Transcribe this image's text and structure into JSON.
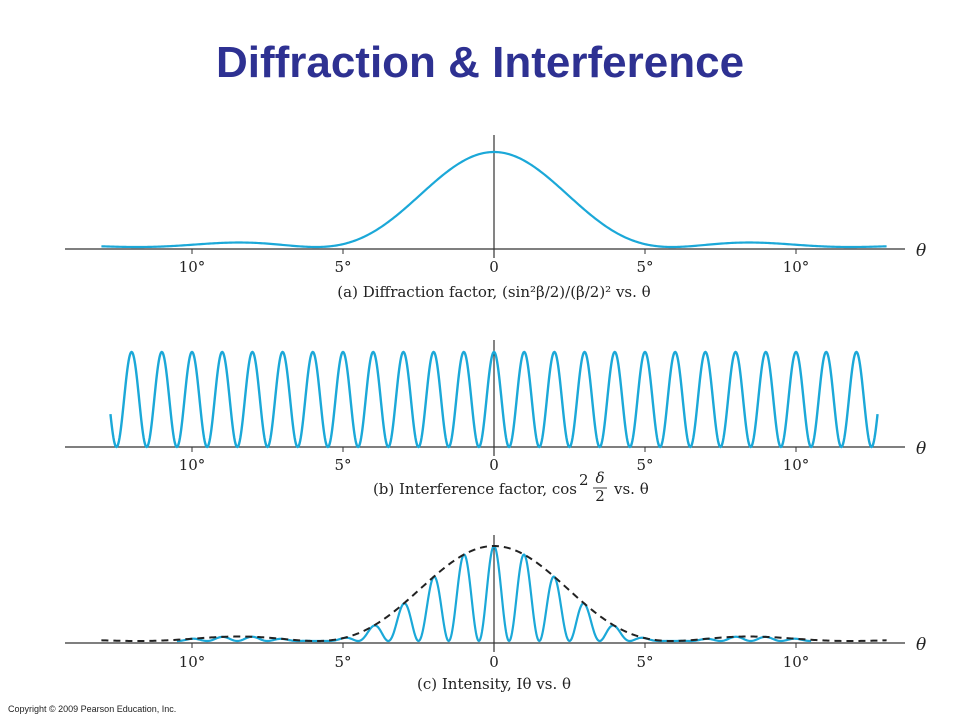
{
  "slide": {
    "title": "Diffraction & Interference",
    "copyright": "Copyright © 2009 Pearson Education, Inc."
  },
  "colors": {
    "curve": "#1ba8d8",
    "envelope": "#222222",
    "axis": "#333333",
    "title": "#2e3192"
  },
  "chart_data": [
    {
      "type": "line",
      "panel": "a",
      "x_symbol": "θ",
      "caption": "(a) Diffraction factor, (sin²β/2)/(β/2)² vs. θ",
      "x_tick_labels": [
        "10°",
        "5°",
        "0",
        "5°",
        "10°"
      ],
      "x_tick_values": [
        -10,
        -5,
        0,
        5,
        10
      ],
      "xlim": [
        -13,
        13
      ],
      "ylim": [
        0,
        1
      ],
      "first_minimum_deg": 5.9,
      "series": [
        {
          "points": [
            [
              -13,
              0.014
            ],
            [
              -12,
              0.0004
            ],
            [
              -11,
              0.022
            ],
            [
              -10,
              0.044
            ],
            [
              -8.9,
              0.049
            ],
            [
              -8,
              0.038
            ],
            [
              -7,
              0.013
            ],
            [
              -5.9,
              0
            ],
            [
              -5,
              0.042
            ],
            [
              -4,
              0.24
            ],
            [
              -3,
              0.53
            ],
            [
              -2,
              0.77
            ],
            [
              -1,
              0.94
            ],
            [
              0,
              1
            ],
            [
              1,
              0.94
            ],
            [
              2,
              0.77
            ],
            [
              3,
              0.53
            ],
            [
              4,
              0.24
            ],
            [
              5,
              0.042
            ],
            [
              5.9,
              0
            ],
            [
              7,
              0.013
            ],
            [
              8,
              0.038
            ],
            [
              8.9,
              0.049
            ],
            [
              10,
              0.044
            ],
            [
              11,
              0.022
            ],
            [
              12,
              0.0004
            ],
            [
              13,
              0.014
            ]
          ]
        }
      ]
    },
    {
      "type": "line",
      "panel": "b",
      "x_symbol": "θ",
      "caption_prefix": "(b) Interference factor, cos",
      "caption_power": "2",
      "caption_frac_num": "δ",
      "caption_frac_den": "2",
      "caption_suffix": "vs. θ",
      "x_tick_labels": [
        "10°",
        "5°",
        "0",
        "5°",
        "10°"
      ],
      "x_tick_values": [
        -10,
        -5,
        0,
        5,
        10
      ],
      "xlim": [
        -13.2,
        13.2
      ],
      "ylim": [
        0,
        1
      ],
      "fringe_spacing_deg": 1.0
    },
    {
      "type": "line",
      "panel": "c",
      "x_symbol": "θ",
      "caption": "(c) Intensity, Iθ vs. θ",
      "x_tick_labels": [
        "10°",
        "5°",
        "0",
        "5°",
        "10°"
      ],
      "x_tick_values": [
        -10,
        -5,
        0,
        5,
        10
      ],
      "xlim": [
        -13,
        13
      ],
      "ylim": [
        0,
        1
      ],
      "envelope_style": "dashed",
      "fringe_spacing_deg": 1.0,
      "first_minimum_deg": 5.9
    }
  ]
}
